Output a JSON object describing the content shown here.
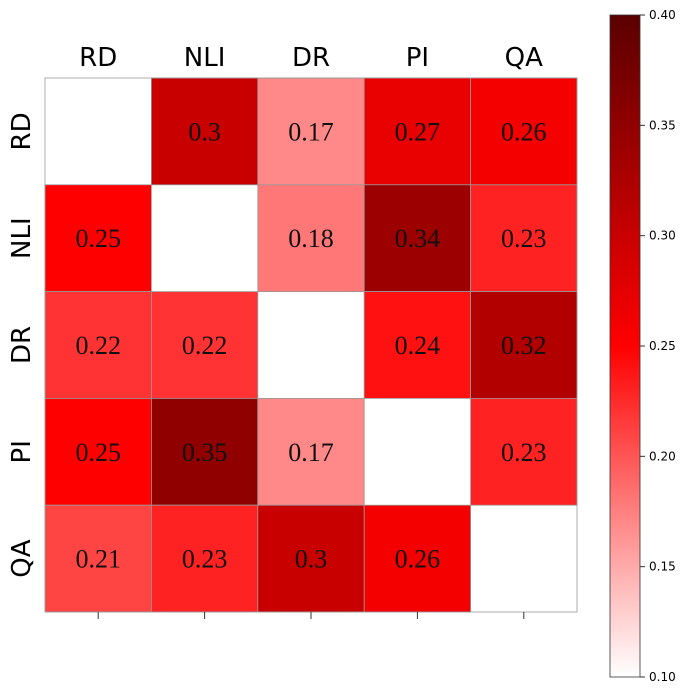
{
  "chart_data": {
    "type": "heatmap",
    "x_categories": [
      "RD",
      "NLI",
      "DR",
      "PI",
      "QA"
    ],
    "y_categories": [
      "RD",
      "NLI",
      "DR",
      "PI",
      "QA"
    ],
    "values": [
      [
        null,
        0.3,
        0.17,
        0.27,
        0.26
      ],
      [
        0.25,
        null,
        0.18,
        0.34,
        0.23
      ],
      [
        0.22,
        0.22,
        null,
        0.24,
        0.32
      ],
      [
        0.25,
        0.35,
        0.17,
        null,
        0.23
      ],
      [
        0.21,
        0.23,
        0.3,
        0.26,
        null
      ]
    ],
    "colormap": [
      "#ffffff",
      "#ff0000",
      "#5a0000"
    ],
    "clim": [
      0.1,
      0.4
    ],
    "cticks": [
      {
        "value": 0.1,
        "label": "0.10"
      },
      {
        "value": 0.15,
        "label": "0.15"
      },
      {
        "value": 0.2,
        "label": "0.20"
      },
      {
        "value": 0.25,
        "label": "0.25"
      },
      {
        "value": 0.3,
        "label": "0.30"
      },
      {
        "value": 0.35,
        "label": "0.35"
      },
      {
        "value": 0.4,
        "label": "0.40"
      }
    ]
  }
}
